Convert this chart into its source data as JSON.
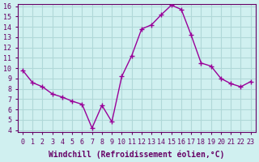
{
  "x": [
    0,
    1,
    2,
    3,
    4,
    5,
    6,
    7,
    8,
    9,
    10,
    11,
    12,
    13,
    14,
    15,
    16,
    17,
    18,
    19,
    20,
    21,
    22,
    23
  ],
  "y": [
    9.8,
    8.6,
    8.2,
    7.5,
    7.2,
    6.8,
    6.5,
    4.2,
    6.4,
    4.8,
    9.2,
    11.2,
    13.8,
    14.2,
    15.2,
    16.1,
    15.7,
    13.2,
    10.5,
    10.2,
    9.0,
    8.5,
    8.2,
    8.7
  ],
  "line_color": "#990099",
  "marker": "+",
  "marker_size": 4,
  "bg_color": "#d0f0f0",
  "grid_color": "#b0d8d8",
  "xlabel": "Windchill (Refroidissement éolien,°C)",
  "ylim": [
    4,
    16
  ],
  "xlim": [
    0,
    23
  ],
  "yticks": [
    4,
    5,
    6,
    7,
    8,
    9,
    10,
    11,
    12,
    13,
    14,
    15,
    16
  ],
  "xticks": [
    0,
    1,
    2,
    3,
    4,
    5,
    6,
    7,
    8,
    9,
    10,
    11,
    12,
    13,
    14,
    15,
    16,
    17,
    18,
    19,
    20,
    21,
    22,
    23
  ],
  "axis_color": "#660066",
  "tick_fontsize": 6,
  "xlabel_fontsize": 7,
  "spine_color": "#660066"
}
